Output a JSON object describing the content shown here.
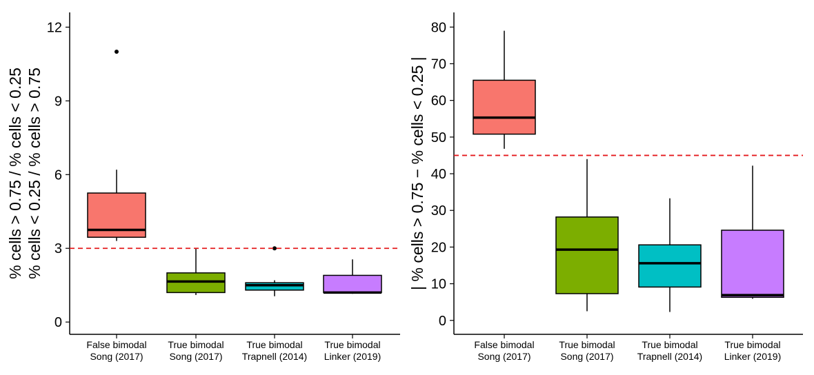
{
  "chart_data": [
    {
      "type": "box",
      "panel": "left",
      "ylabel_lines": [
        "% cells > 0.75 / % cells < 0.25",
        "% cells < 0.25 / % cells > 0.75"
      ],
      "xlabel": "",
      "ylim": [
        -0.5,
        12.6
      ],
      "yticks": [
        0,
        3,
        6,
        9,
        12
      ],
      "grid": false,
      "legend": "none",
      "threshold": {
        "value": 3,
        "color": "#e41a1c",
        "style": "dashed"
      },
      "categories": [
        [
          "False bimodal",
          "Song (2017)"
        ],
        [
          "True bimodal",
          "Song (2017)"
        ],
        [
          "True bimodal",
          "Trapnell (2014)"
        ],
        [
          "True bimodal",
          "Linker (2019)"
        ]
      ],
      "boxes": [
        {
          "color": "#F8766D",
          "whisker_low": 3.3,
          "q1": 3.45,
          "median": 3.75,
          "q3": 5.25,
          "whisker_high": 6.2,
          "outliers": [
            11.0
          ]
        },
        {
          "color": "#7CAE00",
          "whisker_low": 1.1,
          "q1": 1.2,
          "median": 1.65,
          "q3": 2.0,
          "whisker_high": 3.0,
          "outliers": []
        },
        {
          "color": "#00BFC4",
          "whisker_low": 1.05,
          "q1": 1.3,
          "median": 1.5,
          "q3": 1.6,
          "whisker_high": 1.7,
          "outliers": [
            3.0
          ]
        },
        {
          "color": "#C77CFF",
          "whisker_low": 1.15,
          "q1": 1.2,
          "median": 1.2,
          "q3": 1.9,
          "whisker_high": 2.55,
          "outliers": []
        }
      ]
    },
    {
      "type": "box",
      "panel": "right",
      "ylabel_lines": [
        "| % cells > 0.75 − % cells < 0.25 |"
      ],
      "xlabel": "",
      "ylim": [
        -3.8,
        84
      ],
      "yticks": [
        0,
        10,
        20,
        30,
        40,
        50,
        60,
        70,
        80
      ],
      "grid": false,
      "legend": "none",
      "threshold": {
        "value": 45,
        "color": "#e41a1c",
        "style": "dashed"
      },
      "categories": [
        [
          "False bimodal",
          "Song (2017)"
        ],
        [
          "True bimodal",
          "Song (2017)"
        ],
        [
          "True bimodal",
          "Trapnell (2014)"
        ],
        [
          "True bimodal",
          "Linker (2019)"
        ]
      ],
      "boxes": [
        {
          "color": "#F8766D",
          "whisker_low": 46.8,
          "q1": 50.8,
          "median": 55.3,
          "q3": 65.5,
          "whisker_high": 79.0,
          "outliers": []
        },
        {
          "color": "#7CAE00",
          "whisker_low": 2.5,
          "q1": 7.3,
          "median": 19.3,
          "q3": 28.2,
          "whisker_high": 44.0,
          "outliers": []
        },
        {
          "color": "#00BFC4",
          "whisker_low": 2.3,
          "q1": 9.1,
          "median": 15.6,
          "q3": 20.6,
          "whisker_high": 33.3,
          "outliers": []
        },
        {
          "color": "#C77CFF",
          "whisker_low": 5.9,
          "q1": 6.3,
          "median": 6.9,
          "q3": 24.6,
          "whisker_high": 42.2,
          "outliers": []
        }
      ]
    }
  ]
}
